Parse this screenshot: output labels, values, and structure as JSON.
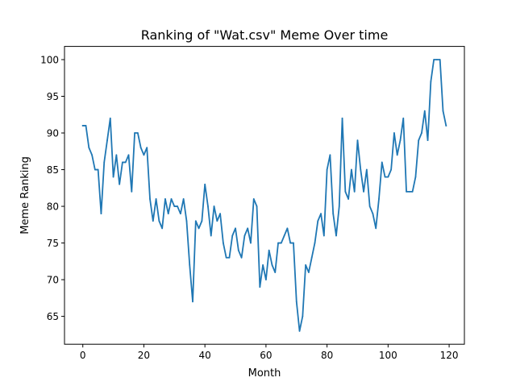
{
  "chart_data": {
    "type": "line",
    "title": "Ranking of \"Wat.csv\" Meme Over time",
    "xlabel": "Month",
    "ylabel": "Meme Ranking",
    "xlim": [
      -6,
      125
    ],
    "ylim": [
      61.2,
      101.8
    ],
    "xticks": [
      0,
      20,
      40,
      60,
      80,
      100,
      120
    ],
    "yticks": [
      65,
      70,
      75,
      80,
      85,
      90,
      95,
      100
    ],
    "grid": false,
    "series": [
      {
        "color": "#1f77b4",
        "x": [
          0,
          1,
          2,
          3,
          4,
          5,
          6,
          7,
          8,
          9,
          10,
          11,
          12,
          13,
          14,
          15,
          16,
          17,
          18,
          19,
          20,
          21,
          22,
          23,
          24,
          25,
          26,
          27,
          28,
          29,
          30,
          31,
          32,
          33,
          34,
          35,
          36,
          37,
          38,
          39,
          40,
          41,
          42,
          43,
          44,
          45,
          46,
          47,
          48,
          49,
          50,
          51,
          52,
          53,
          54,
          55,
          56,
          57,
          58,
          59,
          60,
          61,
          62,
          63,
          64,
          65,
          66,
          67,
          68,
          69,
          70,
          71,
          72,
          73,
          74,
          75,
          76,
          77,
          78,
          79,
          80,
          81,
          82,
          83,
          84,
          85,
          86,
          87,
          88,
          89,
          90,
          91,
          92,
          93,
          94,
          95,
          96,
          97,
          98,
          99,
          100,
          101,
          102,
          103,
          104,
          105,
          106,
          107,
          108,
          109,
          110,
          111,
          112,
          113,
          114,
          115,
          116,
          117,
          118,
          119
        ],
        "values": [
          91,
          91,
          88,
          87,
          85,
          85,
          79,
          86,
          89,
          92,
          84,
          87,
          83,
          86,
          86,
          87,
          82,
          90,
          90,
          88,
          87,
          88,
          81,
          78,
          81,
          78,
          77,
          81,
          79,
          81,
          80,
          80,
          79,
          81,
          78,
          72,
          67,
          78,
          77,
          78,
          83,
          80,
          76,
          80,
          78,
          79,
          75,
          73,
          73,
          76,
          77,
          74,
          73,
          76,
          77,
          75,
          81,
          80,
          69,
          72,
          70,
          74,
          72,
          71,
          75,
          75,
          76,
          77,
          75,
          75,
          67,
          63,
          65,
          72,
          71,
          73,
          75,
          78,
          79,
          76,
          85,
          87,
          79,
          76,
          80,
          92,
          82,
          81,
          85,
          82,
          89,
          85,
          82,
          85,
          80,
          79,
          77,
          81,
          86,
          84,
          84,
          85,
          90,
          87,
          89,
          92,
          82,
          82,
          82,
          84,
          89,
          90,
          93,
          89,
          97,
          100,
          100,
          100,
          93,
          91
        ]
      }
    ]
  }
}
